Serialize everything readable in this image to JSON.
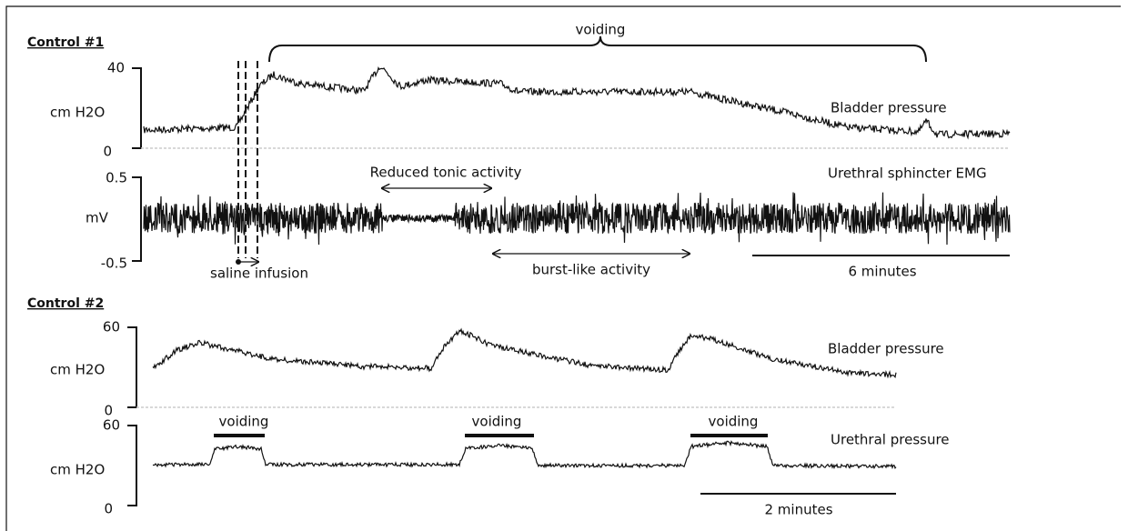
{
  "panels": [
    {
      "title": "Control #1",
      "voiding": "voiding",
      "reduced": "Reduced tonic activity",
      "burst": "burst-like activity",
      "infusion": "saline infusion",
      "scale": "6 minutes",
      "traces": [
        {
          "label": "Bladder pressure",
          "unit": "cm H2O",
          "ticks": [
            40,
            0
          ]
        },
        {
          "label": "Urethral sphincter EMG",
          "unit": "mV",
          "ticks": [
            0.5,
            -0.5
          ]
        }
      ]
    },
    {
      "title": "Control #2",
      "voiding": [
        "voiding",
        "voiding",
        "voiding"
      ],
      "scale": "2 minutes",
      "traces": [
        {
          "label": "Bladder pressure",
          "unit": "cm H2O",
          "ticks": [
            60,
            0
          ]
        },
        {
          "label": "Urethral pressure",
          "unit": "cm H2O",
          "ticks": [
            60,
            0
          ]
        }
      ]
    }
  ]
}
